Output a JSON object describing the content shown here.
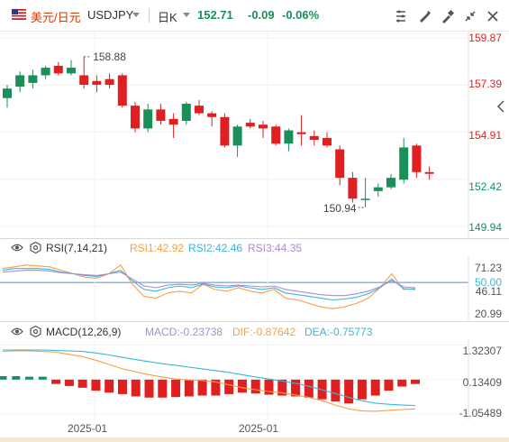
{
  "header": {
    "currency_name": "美元/日元",
    "symbol": "USDJPY",
    "period": "日K",
    "price": "152.71",
    "change": "-0.09",
    "change_pct": "-0.06%",
    "colors": {
      "down": "#1a8f5a",
      "up": "#e02020",
      "currency": "#d83b01"
    },
    "icons": [
      "us-flag-icon",
      "dropdown-icon",
      "period-dropdown-icon",
      "draw-settings-icon",
      "drawing-tools-icon",
      "indicator-tools-icon",
      "shrink-icon",
      "fullscreen-icon"
    ]
  },
  "rsi": {
    "label": "RSI(7,14,21)",
    "rsi1": "RSI1:42.92",
    "rsi2": "RSI2:42.46",
    "rsi3": "RSI3:44.35",
    "colors": {
      "rsi1": "#f6a043",
      "rsi2": "#35b8d6",
      "rsi3": "#a98ad8"
    }
  },
  "macd": {
    "label": "MACD(12,26,9)",
    "macd": "MACD:-0.23738",
    "dif": "DIF:-0.87642",
    "dea": "DEA:-0.75773",
    "colors": {
      "macd": "#a98ad8",
      "dif": "#f6a043",
      "dea": "#35b8d6"
    }
  },
  "chart_data": [
    {
      "type": "candlestick",
      "y_ticks": [
        "159.87",
        "157.39",
        "154.91",
        "152.42",
        "149.94"
      ],
      "ylim": [
        149.94,
        159.87
      ],
      "annotations": {
        "high": "158.88",
        "low": "150.94"
      },
      "candles": [
        {
          "o": 156.7,
          "h": 157.4,
          "l": 156.2,
          "c": 157.2
        },
        {
          "o": 157.3,
          "h": 158.1,
          "l": 157.0,
          "c": 157.9
        },
        {
          "o": 157.5,
          "h": 158.2,
          "l": 157.2,
          "c": 157.9
        },
        {
          "o": 157.9,
          "h": 158.4,
          "l": 157.7,
          "c": 158.3
        },
        {
          "o": 158.4,
          "h": 158.6,
          "l": 157.9,
          "c": 158.0
        },
        {
          "o": 158.0,
          "h": 158.7,
          "l": 157.9,
          "c": 158.3
        },
        {
          "o": 157.9,
          "h": 158.88,
          "l": 157.2,
          "c": 157.4
        },
        {
          "o": 157.6,
          "h": 157.9,
          "l": 157.0,
          "c": 157.4
        },
        {
          "o": 157.7,
          "h": 158.0,
          "l": 157.2,
          "c": 157.4
        },
        {
          "o": 157.9,
          "h": 158.0,
          "l": 156.2,
          "c": 156.3
        },
        {
          "o": 156.3,
          "h": 156.5,
          "l": 154.9,
          "c": 155.1
        },
        {
          "o": 155.1,
          "h": 156.4,
          "l": 154.9,
          "c": 156.1
        },
        {
          "o": 156.1,
          "h": 156.4,
          "l": 155.3,
          "c": 155.5
        },
        {
          "o": 155.6,
          "h": 155.9,
          "l": 154.6,
          "c": 155.3
        },
        {
          "o": 155.5,
          "h": 156.5,
          "l": 155.3,
          "c": 156.4
        },
        {
          "o": 156.3,
          "h": 156.6,
          "l": 155.8,
          "c": 155.9
        },
        {
          "o": 155.9,
          "h": 156.0,
          "l": 155.2,
          "c": 155.7
        },
        {
          "o": 155.7,
          "h": 155.9,
          "l": 154.1,
          "c": 154.2
        },
        {
          "o": 154.2,
          "h": 155.3,
          "l": 153.6,
          "c": 155.2
        },
        {
          "o": 155.4,
          "h": 155.6,
          "l": 155.1,
          "c": 155.2
        },
        {
          "o": 155.3,
          "h": 155.5,
          "l": 154.6,
          "c": 155.1
        },
        {
          "o": 155.2,
          "h": 155.3,
          "l": 154.2,
          "c": 154.3
        },
        {
          "o": 154.3,
          "h": 155.1,
          "l": 153.9,
          "c": 155.0
        },
        {
          "o": 154.9,
          "h": 155.8,
          "l": 154.2,
          "c": 154.8
        },
        {
          "o": 154.7,
          "h": 155.0,
          "l": 154.2,
          "c": 154.5
        },
        {
          "o": 154.6,
          "h": 154.9,
          "l": 154.1,
          "c": 154.2
        },
        {
          "o": 154.0,
          "h": 154.2,
          "l": 152.1,
          "c": 152.5
        },
        {
          "o": 152.5,
          "h": 152.8,
          "l": 151.2,
          "c": 151.4
        },
        {
          "o": 151.4,
          "h": 152.5,
          "l": 150.94,
          "c": 151.4
        },
        {
          "o": 151.8,
          "h": 152.2,
          "l": 151.5,
          "c": 152.0
        },
        {
          "o": 152.0,
          "h": 152.7,
          "l": 151.9,
          "c": 152.5
        },
        {
          "o": 152.4,
          "h": 154.6,
          "l": 152.2,
          "c": 154.1
        },
        {
          "o": 154.2,
          "h": 154.3,
          "l": 152.5,
          "c": 152.8
        },
        {
          "o": 152.8,
          "h": 153.1,
          "l": 152.4,
          "c": 152.71
        }
      ]
    },
    {
      "type": "line",
      "title": "RSI(7,14,21)",
      "y_ticks": [
        "71.23",
        "50.00",
        "46.11",
        "20.99"
      ],
      "ylim": [
        20.99,
        71.23
      ],
      "reference_line": 50.0,
      "series": [
        {
          "name": "RSI1",
          "values": [
            66,
            68,
            70,
            69,
            68,
            64,
            60,
            56,
            55,
            60,
            70,
            48,
            34,
            32,
            38,
            40,
            38,
            48,
            42,
            40,
            44,
            40,
            38,
            42,
            32,
            30,
            26,
            22,
            20,
            22,
            26,
            32,
            44,
            60,
            42,
            43
          ]
        },
        {
          "name": "RSI2",
          "values": [
            64,
            66,
            66,
            66,
            65,
            62,
            60,
            58,
            57,
            60,
            64,
            52,
            42,
            40,
            44,
            46,
            44,
            48,
            45,
            44,
            46,
            44,
            42,
            44,
            38,
            36,
            34,
            32,
            30,
            31,
            33,
            37,
            44,
            54,
            43,
            42
          ]
        },
        {
          "name": "RSI3",
          "values": [
            62,
            63,
            64,
            64,
            63,
            61,
            60,
            59,
            58,
            60,
            62,
            54,
            46,
            44,
            47,
            48,
            47,
            49,
            47,
            46,
            47,
            46,
            45,
            46,
            42,
            40,
            38,
            36,
            35,
            35,
            37,
            40,
            45,
            52,
            45,
            44
          ]
        }
      ]
    },
    {
      "type": "bar",
      "title": "MACD(12,26,9)",
      "y_ticks": [
        "1.32307",
        "0.13409",
        "-1.05489"
      ],
      "ylim": [
        -1.05489,
        1.32307
      ],
      "x_ticks": [
        "2025-01",
        "2025-01"
      ],
      "histogram": [
        0.12,
        0.12,
        0.1,
        0.1,
        -0.15,
        -0.22,
        -0.28,
        -0.38,
        -0.45,
        -0.5,
        -0.58,
        -0.62,
        -0.62,
        -0.6,
        -0.58,
        -0.55,
        -0.55,
        -0.5,
        -0.45,
        -0.48,
        -0.52,
        -0.55,
        -0.58,
        -0.62,
        -0.68,
        -0.75,
        -0.82,
        -0.68,
        -0.55,
        -0.38,
        -0.24,
        -0.15
      ],
      "series": [
        {
          "name": "DIF",
          "values": [
            1.1,
            1.12,
            1.12,
            1.1,
            1.08,
            1.0,
            0.92,
            0.8,
            0.65,
            0.5,
            0.4,
            0.3,
            0.22,
            0.15,
            0.12,
            0.1,
            0.05,
            -0.05,
            -0.15,
            -0.22,
            -0.28,
            -0.33,
            -0.4,
            -0.48,
            -0.6,
            -0.75,
            -0.88,
            -0.95,
            -0.96,
            -0.93,
            -0.9,
            -0.88
          ]
        },
        {
          "name": "DEA",
          "values": [
            1.15,
            1.15,
            1.15,
            1.15,
            1.14,
            1.12,
            1.1,
            1.05,
            0.98,
            0.9,
            0.82,
            0.75,
            0.68,
            0.62,
            0.56,
            0.5,
            0.44,
            0.38,
            0.3,
            0.22,
            0.15,
            0.08,
            0.0,
            -0.1,
            -0.22,
            -0.35,
            -0.48,
            -0.6,
            -0.68,
            -0.72,
            -0.75,
            -0.76
          ]
        }
      ]
    }
  ]
}
